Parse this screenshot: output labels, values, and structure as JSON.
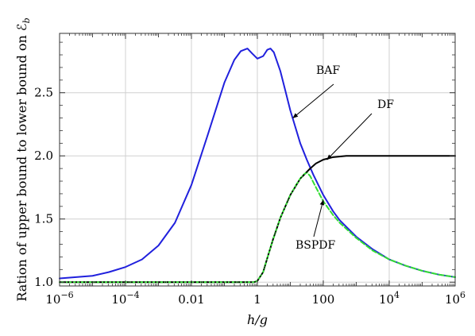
{
  "chart_data": {
    "type": "line",
    "xlabel": "h/g",
    "ylabel": "Ration of upper bound to lower bound on ℰ",
    "ylabel_subscript": "b",
    "x_scale": "log",
    "xlim": [
      1e-06,
      1000000
    ],
    "ylim": [
      0.97,
      2.97
    ],
    "grid": true,
    "x_ticks": [
      {
        "value": 1e-06,
        "base": "10",
        "exp": "−6"
      },
      {
        "value": 0.0001,
        "base": "10",
        "exp": "−4"
      },
      {
        "value": 0.01,
        "text": "0.01"
      },
      {
        "value": 1,
        "text": "1"
      },
      {
        "value": 100,
        "text": "100"
      },
      {
        "value": 10000,
        "base": "10",
        "exp": "4"
      },
      {
        "value": 1000000,
        "base": "10",
        "exp": "6"
      }
    ],
    "y_ticks": [
      {
        "value": 1.0,
        "text": "1.0"
      },
      {
        "value": 1.5,
        "text": "1.5"
      },
      {
        "value": 2.0,
        "text": "2.0"
      },
      {
        "value": 2.5,
        "text": "2.5"
      }
    ],
    "series": [
      {
        "name": "BAF",
        "color": "#2020dd",
        "style": "solid",
        "x": [
          1e-06,
          3.16e-06,
          1e-05,
          3.16e-05,
          0.0001,
          0.000316,
          0.001,
          0.00316,
          0.01,
          0.0316,
          0.1,
          0.2,
          0.316,
          0.5,
          0.7,
          1,
          1.5,
          2,
          2.5,
          3.16,
          5,
          7,
          10,
          20,
          31.6,
          50,
          100,
          200,
          316,
          1000,
          3162,
          10000,
          31620,
          100000,
          316200,
          1000000
        ],
        "y": [
          1.03,
          1.04,
          1.05,
          1.08,
          1.12,
          1.18,
          1.29,
          1.47,
          1.77,
          2.17,
          2.58,
          2.76,
          2.83,
          2.85,
          2.81,
          2.77,
          2.79,
          2.84,
          2.85,
          2.82,
          2.67,
          2.52,
          2.36,
          2.1,
          1.97,
          1.85,
          1.69,
          1.56,
          1.49,
          1.36,
          1.26,
          1.18,
          1.13,
          1.09,
          1.06,
          1.04
        ]
      },
      {
        "name": "DF",
        "color": "#000000",
        "style": "solid",
        "x": [
          1e-06,
          0.01,
          0.1,
          0.5,
          0.8,
          1,
          1.5,
          2,
          3,
          5,
          10,
          20,
          40,
          60,
          100,
          200,
          500,
          1000,
          10000,
          100000,
          1000000
        ],
        "y": [
          1.0,
          1.0,
          1.0,
          1.0,
          1.0,
          1.01,
          1.08,
          1.19,
          1.34,
          1.51,
          1.69,
          1.82,
          1.9,
          1.94,
          1.97,
          1.99,
          2.0,
          2.0,
          2.0,
          2.0,
          2.0
        ]
      },
      {
        "name": "BSPDF",
        "color": "#33dd33",
        "style": "dashed",
        "x": [
          1e-06,
          0.01,
          0.1,
          0.5,
          0.8,
          1,
          1.5,
          2,
          3,
          5,
          10,
          15,
          20,
          25,
          31.6,
          40,
          60,
          100,
          200,
          316,
          1000,
          3162,
          10000,
          31620,
          100000,
          316200,
          1000000
        ],
        "y": [
          1.0,
          1.0,
          1.0,
          1.0,
          1.0,
          1.01,
          1.08,
          1.19,
          1.34,
          1.51,
          1.69,
          1.77,
          1.82,
          1.85,
          1.87,
          1.84,
          1.75,
          1.64,
          1.53,
          1.47,
          1.35,
          1.25,
          1.18,
          1.13,
          1.09,
          1.06,
          1.04
        ]
      }
    ],
    "annotations": [
      {
        "text": "BAF",
        "target": "BAF"
      },
      {
        "text": "DF",
        "target": "DF"
      },
      {
        "text": "BSPDF",
        "target": "BSPDF"
      }
    ]
  }
}
